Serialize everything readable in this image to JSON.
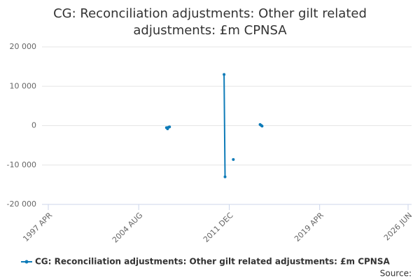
{
  "chart_data": {
    "type": "line",
    "title": "CG: Reconciliation adjustments: Other gilt related adjustments: £m CPNSA",
    "x": [
      2006.83,
      2006.92,
      2007.0,
      2007.08,
      2007.17,
      2011.5,
      2011.58,
      2011.67,
      2012.25,
      2012.33,
      2014.42,
      2014.5,
      2014.58
    ],
    "series": [
      {
        "name": "CG: Reconciliation adjustments: Other gilt related adjustments: £m CPNSA",
        "color": "#0e7bb8",
        "values": [
          -500,
          -800,
          -400,
          -300,
          null,
          13000,
          -13000,
          null,
          -8600,
          null,
          300,
          100,
          -100
        ]
      }
    ],
    "xlim": [
      1997.25,
      2026.42
    ],
    "xticks": [
      {
        "value": 1997.25,
        "label": "1997 APR"
      },
      {
        "value": 2004.58,
        "label": "2004 AUG"
      },
      {
        "value": 2011.92,
        "label": "2011 DEC"
      },
      {
        "value": 2019.25,
        "label": "2019 APR"
      },
      {
        "value": 2026.42,
        "label": "2026 JUN"
      }
    ],
    "ylim": [
      -20000,
      20000
    ],
    "yticks": [
      {
        "value": -20000,
        "label": "-20 000"
      },
      {
        "value": -10000,
        "label": "-10 000"
      },
      0,
      {
        "value": 10000,
        "label": "10 000"
      },
      {
        "value": 20000,
        "label": "20 000"
      }
    ],
    "grid": true,
    "source": "Source:"
  }
}
